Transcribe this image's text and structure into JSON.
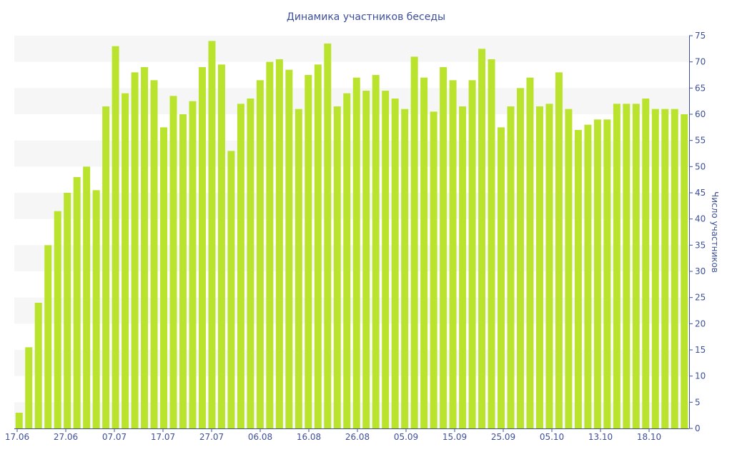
{
  "chart_data": {
    "type": "bar",
    "title": "Динамика участников беседы",
    "xlabel": "",
    "ylabel": "Число участников",
    "x_tick_labels": [
      "17.06",
      "27.06",
      "07.07",
      "17.07",
      "27.07",
      "06.08",
      "16.08",
      "26.08",
      "05.09",
      "15.09",
      "25.09",
      "05.10",
      "13.10",
      "18.10"
    ],
    "y_ticks": [
      0,
      5,
      10,
      15,
      20,
      25,
      30,
      35,
      40,
      45,
      50,
      55,
      60,
      65,
      70,
      75
    ],
    "ylim": [
      0,
      75
    ],
    "y_axis_position": "right",
    "bar_color": "#b9e32d",
    "band_color": "#f6f6f6",
    "text_color": "#3d4f9a",
    "axis_color": "#3d4f9a",
    "values": [
      3,
      15.5,
      24,
      35,
      41.5,
      45,
      48,
      50,
      45.5,
      61.5,
      73,
      64,
      68,
      69,
      66.5,
      57.5,
      63.5,
      60,
      62.5,
      69,
      74,
      69.5,
      53,
      62,
      63,
      66.5,
      70,
      70.5,
      68.5,
      61,
      67.5,
      69.5,
      73.5,
      61.5,
      64,
      67,
      64.5,
      67.5,
      64.5,
      63,
      61,
      71,
      67,
      60.5,
      69,
      66.5,
      61.5,
      66.5,
      72.5,
      70.5,
      57.5,
      61.5,
      65,
      67,
      61.5,
      62,
      68,
      61,
      57,
      58,
      59,
      59,
      62,
      62,
      62,
      63,
      61,
      61,
      61,
      60
    ]
  }
}
